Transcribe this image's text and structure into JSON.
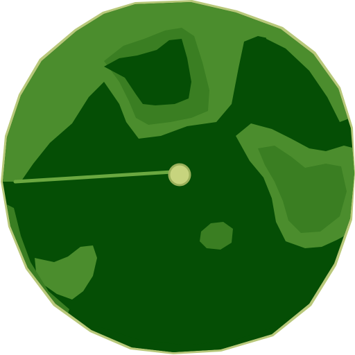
{
  "minimap": {
    "shape": "circular-radar",
    "icons": {
      "player": "player-position-dot-icon",
      "heading": "heading-line-icon"
    },
    "colors": {
      "page_background": "#ffffff",
      "rim": "#b8c87a",
      "dense_forest": "#054e05",
      "light_vegetation": "#4b8d2d",
      "mid_vegetation": "#3a7e22",
      "heading_line": "#6aa840",
      "player_dot": "#c7d47e",
      "player_dot_outline": "#9ab05a"
    }
  }
}
